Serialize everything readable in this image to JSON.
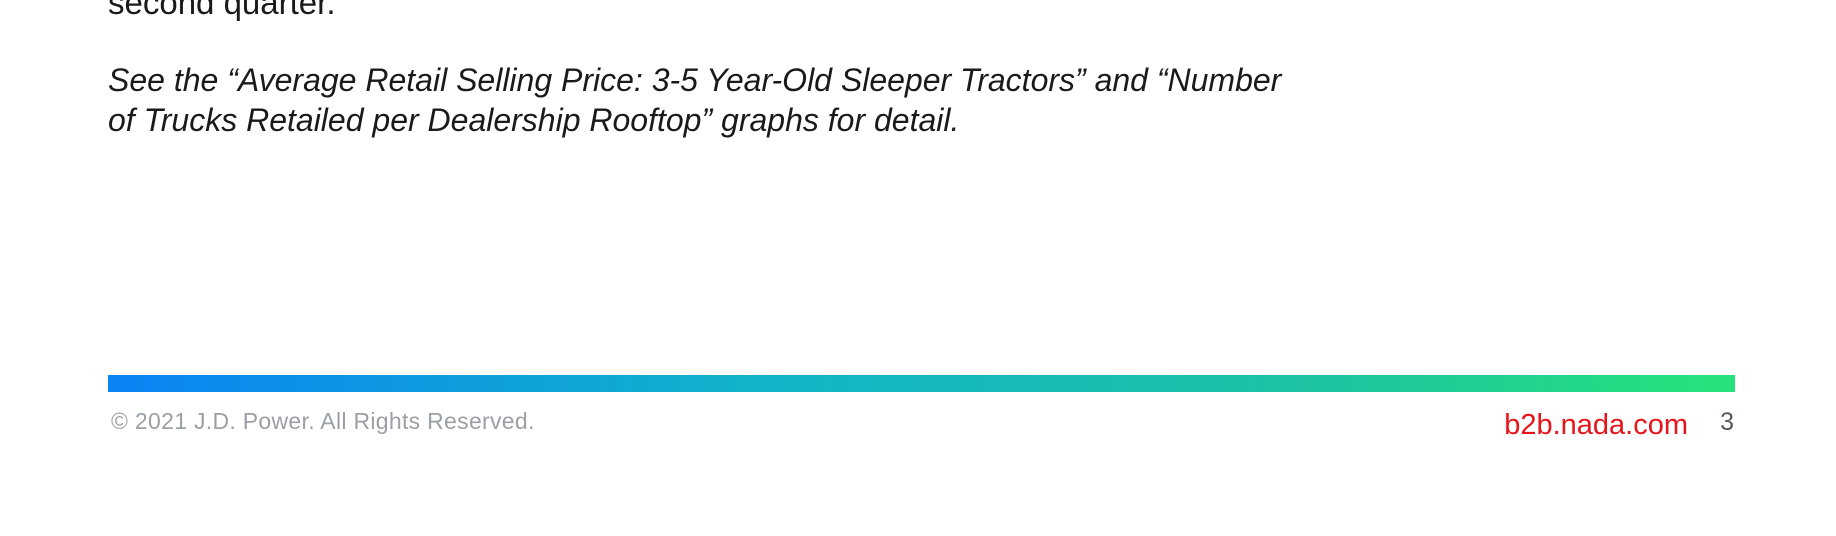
{
  "body": {
    "partial_line": "second quarter.",
    "note_line_1": "See the “Average Retail Selling Price: 3-5 Year-Old Sleeper Tractors” and “Number",
    "note_line_2": "of Trucks Retailed per Dealership Rooftop” graphs for detail."
  },
  "footer": {
    "copyright": "© 2021 J.D. Power. All Rights Reserved.",
    "site": "b2b.nada.com",
    "page_number": "3",
    "bar_gradient": [
      "#0a84f5",
      "#12b3c9",
      "#1ec3a0",
      "#25e37a"
    ],
    "site_color": "#e8141b"
  }
}
